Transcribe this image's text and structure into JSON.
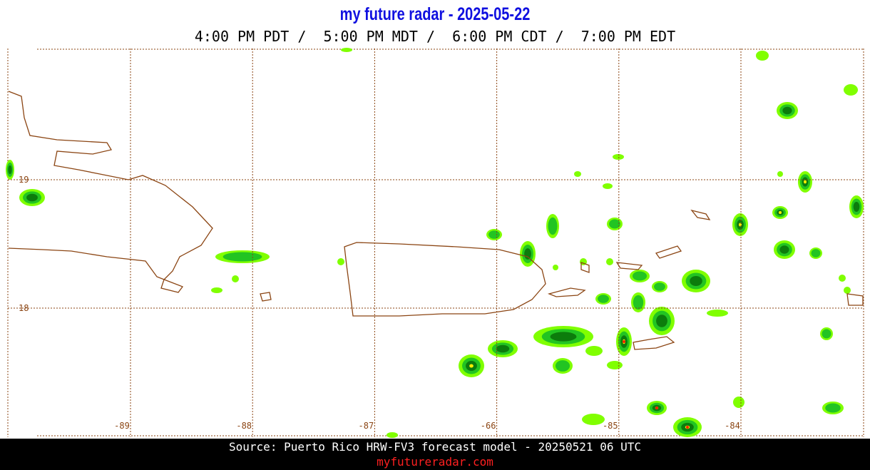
{
  "header": {
    "title": "my future radar - 2025-05-22",
    "times": "4:00 PM PDT /  5:00 PM MDT /  6:00 PM CDT /  7:00 PM EDT"
  },
  "map": {
    "lon_labels": [
      "-89",
      "-88",
      "-87",
      "-66",
      "-85",
      "-84"
    ],
    "lat_labels": [
      "19",
      "18"
    ]
  },
  "footer": {
    "source": "Source: Puerto Rico HRW-FV3 forecast model - 20250521 06 UTC",
    "url": "myfutureradar.com"
  }
}
